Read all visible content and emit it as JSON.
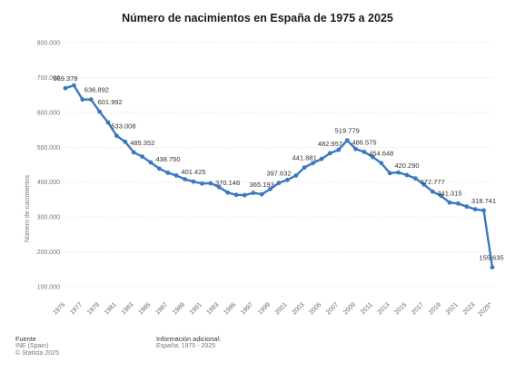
{
  "chart_data": {
    "type": "line",
    "title": "Número de nacimientos en España de 1975 a 2025",
    "xlabel": "",
    "ylabel": "Número de nacimientos",
    "ylim": [
      100000,
      800000
    ],
    "yticks": [
      "800.000",
      "700.000",
      "600.000",
      "500.000",
      "400.000",
      "300.000",
      "200.000",
      "100.000"
    ],
    "ytick_values": [
      800000,
      700000,
      600000,
      500000,
      400000,
      300000,
      200000,
      100000
    ],
    "xticks": [
      "1975",
      "1977",
      "1979",
      "1981",
      "1983",
      "1985",
      "1987",
      "1989",
      "1991",
      "1993",
      "1995",
      "1997",
      "1999",
      "2001",
      "2003",
      "2005",
      "2007",
      "2009",
      "2011",
      "2013",
      "2015",
      "2017",
      "2019",
      "2021",
      "2023",
      "2025*"
    ],
    "xtick_values": [
      1975,
      1977,
      1979,
      1981,
      1983,
      1985,
      1987,
      1989,
      1991,
      1993,
      1995,
      1997,
      1999,
      2001,
      2003,
      2005,
      2007,
      2009,
      2011,
      2013,
      2015,
      2017,
      2019,
      2021,
      2023,
      2025
    ],
    "grid": true,
    "series": [
      {
        "color": "#3a78c2",
        "x": [
          1975,
          1976,
          1977,
          1978,
          1979,
          1980,
          1981,
          1982,
          1983,
          1984,
          1985,
          1986,
          1987,
          1988,
          1989,
          1990,
          1991,
          1992,
          1993,
          1994,
          1995,
          1996,
          1997,
          1998,
          1999,
          2000,
          2001,
          2002,
          2003,
          2004,
          2005,
          2006,
          2007,
          2008,
          2009,
          2010,
          2011,
          2012,
          2013,
          2014,
          2015,
          2016,
          2017,
          2018,
          2019,
          2020,
          2021,
          2022,
          2023,
          2024,
          2025
        ],
        "y": [
          669378,
          677456,
          636892,
          636892,
          601992,
          571018,
          533008,
          515706,
          485352,
          473281,
          456298,
          438750,
          426782,
          418919,
          408434,
          401425,
          395989,
          396747,
          385786,
          370148,
          363469,
          362626,
          369035,
          365193,
          380130,
          397632,
          406380,
          418846,
          441881,
          454591,
          466371,
          482957,
          492527,
          519779,
          494997,
          486575,
          471999,
          454648,
          425715,
          427595,
          420290,
          410583,
          393181,
          372777,
          360617,
          341315,
          338532,
          329812,
          322075,
          318741,
          155635
        ]
      }
    ],
    "annotations": [
      "669.378",
      "636.892",
      "601.992",
      "533.008",
      "485.352",
      "438.750",
      "401.425",
      "370.148",
      "365.193",
      "397.632",
      "441.881",
      "482.957",
      "519.779",
      "486.575",
      "454.648",
      "420.290",
      "372.777",
      "341.315",
      "318.741",
      "155.635"
    ]
  },
  "footer": {
    "source_heading": "Fuente",
    "source_line1": "INE (Spain)",
    "source_line2": "© Statista 2025",
    "info_heading": "Información adicional:",
    "info_line1": "España; 1975 - 2025"
  }
}
